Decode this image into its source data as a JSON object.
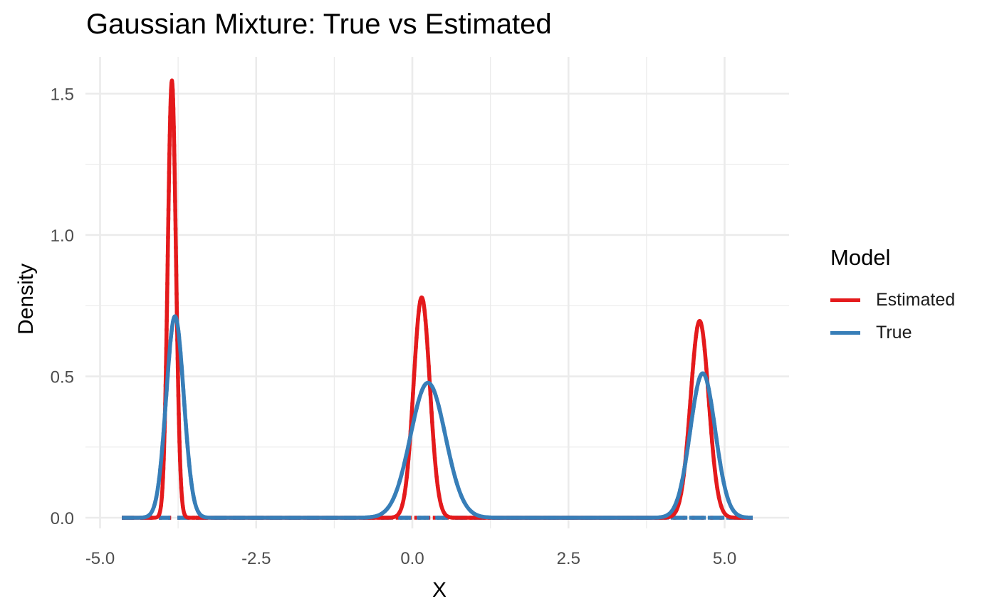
{
  "chart_data": {
    "type": "line",
    "title": "Gaussian Mixture: True vs Estimated",
    "xlabel": "X",
    "ylabel": "Density",
    "xlim": [
      -4.65,
      5.45
    ],
    "ylim": [
      0,
      1.55
    ],
    "x_ticks": [
      "-5.0",
      "-2.5",
      "0.0",
      "2.5",
      "5.0"
    ],
    "y_ticks": [
      "0.0",
      "0.5",
      "1.0",
      "1.5"
    ],
    "grid": true,
    "legend": {
      "title": "Model",
      "position": "right"
    },
    "colors": {
      "Estimated": "#e41a1c",
      "True": "#377eb8"
    },
    "series": [
      {
        "name": "Estimated",
        "style": "solid",
        "kind": "mixture",
        "components": [
          {
            "mean": -3.85,
            "sd": 0.065,
            "weight": 0.252
          },
          {
            "mean": 0.15,
            "sd": 0.13,
            "weight": 0.254
          },
          {
            "mean": 4.6,
            "sd": 0.145,
            "weight": 0.253
          }
        ]
      },
      {
        "name": "Estimated",
        "style": "dotted",
        "kind": "components",
        "components": [
          {
            "mean": -3.85,
            "sd": 0.065,
            "weight": 0.252
          },
          {
            "mean": 0.15,
            "sd": 0.13,
            "weight": 0.254
          },
          {
            "mean": 4.6,
            "sd": 0.145,
            "weight": 0.253
          }
        ]
      },
      {
        "name": "True",
        "style": "solid",
        "kind": "mixture",
        "components": [
          {
            "mean": -3.8,
            "sd": 0.14,
            "weight": 0.25
          },
          {
            "mean": 0.25,
            "sd": 0.28,
            "weight": 0.335
          },
          {
            "mean": 4.65,
            "sd": 0.2,
            "weight": 0.256
          }
        ]
      },
      {
        "name": "True",
        "style": "dashed",
        "kind": "components",
        "components": [
          {
            "mean": -3.8,
            "sd": 0.14,
            "weight": 0.25
          },
          {
            "mean": 0.25,
            "sd": 0.28,
            "weight": 0.335
          },
          {
            "mean": 4.65,
            "sd": 0.2,
            "weight": 0.256
          }
        ]
      }
    ]
  }
}
